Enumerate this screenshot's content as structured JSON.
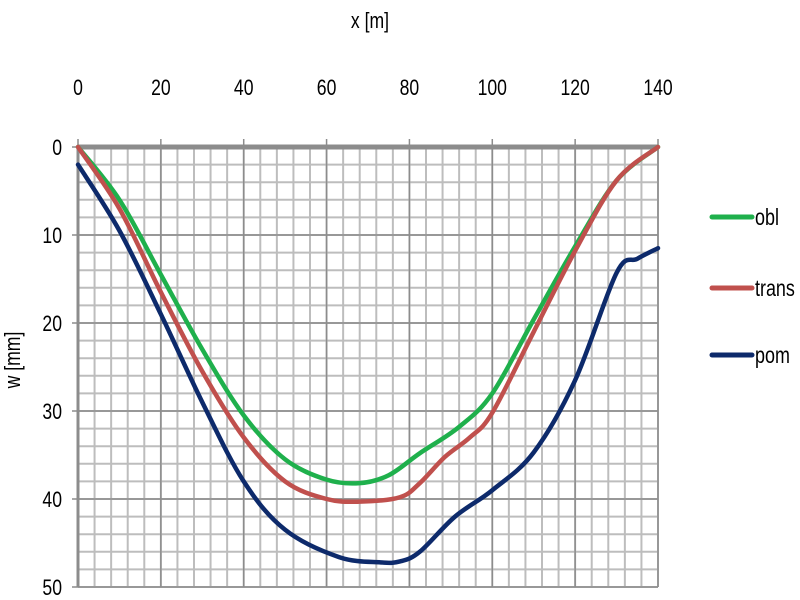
{
  "chart_data": {
    "type": "line",
    "title": "",
    "xlabel": "x [m]",
    "ylabel": "w  [mm]",
    "xlim": [
      0,
      140
    ],
    "ylim": [
      0,
      50
    ],
    "y_inverted": true,
    "x_axis_position": "top",
    "xticks": [
      0,
      20,
      40,
      60,
      80,
      100,
      120,
      140
    ],
    "yticks": [
      0,
      10,
      20,
      30,
      40,
      50
    ],
    "grid": true,
    "minor_grid": {
      "x_step": 4,
      "y_step": 2
    },
    "legend_position": "right",
    "series": [
      {
        "name": "obl",
        "color": "#1fb04c",
        "x": [
          0,
          10,
          20,
          30,
          40,
          50,
          60,
          68,
          75,
          82.5,
          92,
          100,
          110,
          120,
          130,
          140
        ],
        "y": [
          0,
          6,
          14.5,
          23,
          30.5,
          35.5,
          37.8,
          38.2,
          37.3,
          34.8,
          31.8,
          28,
          19.6,
          11.3,
          3.8,
          0
        ]
      },
      {
        "name": "trans",
        "color": "#c0504d",
        "x": [
          0,
          10,
          20,
          30,
          40,
          50,
          60,
          68,
          77.7,
          82.5,
          88.6,
          94.6,
          100,
          110,
          120,
          130,
          140
        ],
        "y": [
          0,
          7,
          16.5,
          25.5,
          33,
          38,
          40,
          40.3,
          39.8,
          38.2,
          35.2,
          33,
          30.2,
          21,
          11.8,
          3.8,
          0
        ]
      },
      {
        "name": "pom",
        "color": "#0d2a6b",
        "x": [
          0,
          10,
          20,
          30,
          40,
          50,
          63,
          73,
          77.7,
          82.5,
          91,
          100,
          110,
          120,
          130,
          135,
          140
        ],
        "y": [
          2,
          9.5,
          19,
          29,
          38,
          43.5,
          46.6,
          47.2,
          47.1,
          46,
          42,
          39,
          34.7,
          26.5,
          14.3,
          12.7,
          11.5
        ]
      }
    ]
  }
}
